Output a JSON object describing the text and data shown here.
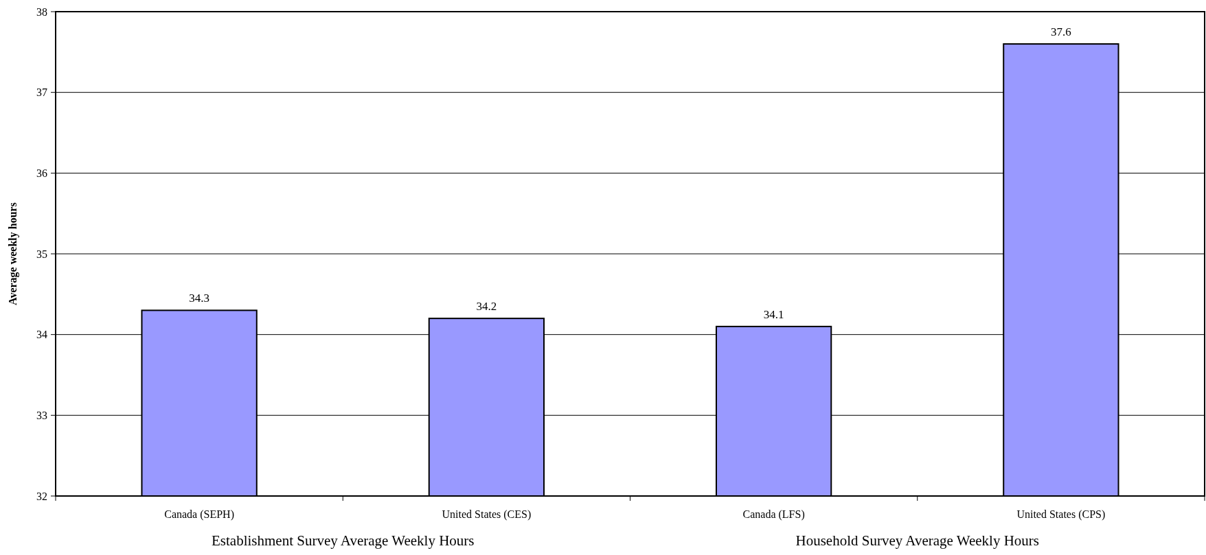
{
  "chart_data": {
    "type": "bar",
    "ylabel": "Average weekly hours",
    "categories": [
      "Canada (SEPH)",
      "United States (CES)",
      "Canada (LFS)",
      "United States (CPS)"
    ],
    "values": [
      34.3,
      34.2,
      34.1,
      37.6
    ],
    "color": "#9999ff",
    "data_labels": true,
    "ylim": [
      32,
      38
    ],
    "yticks": [
      32,
      33,
      34,
      35,
      36,
      37,
      38
    ],
    "grid": "y",
    "annotations": [
      "Establishment Survey Average Weekly Hours",
      "Household Survey Average Weekly Hours"
    ]
  }
}
